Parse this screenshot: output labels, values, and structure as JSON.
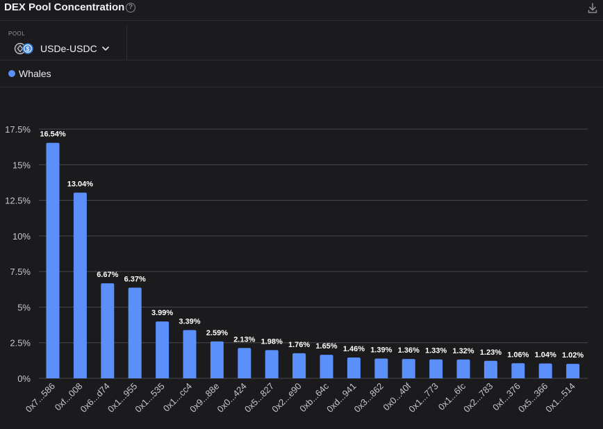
{
  "header": {
    "title": "DEX Pool Concentration",
    "help_glyph": "?"
  },
  "filters": {
    "pool_label": "POOL",
    "pool_value": "USDe-USDC"
  },
  "colors": {
    "bar": "#5b8ff9",
    "grid": "#4a4a4e",
    "background": "#1b1b1d"
  },
  "chart_data": {
    "type": "bar",
    "categories": [
      "0x7...586",
      "0xf...008",
      "0x6...d74",
      "0x1...955",
      "0x1...535",
      "0x1...cc4",
      "0x9...88e",
      "0x0...424",
      "0x5...827",
      "0x2...e90",
      "0xb...64c",
      "0xd...941",
      "0x3...862",
      "0x0...40f",
      "0x1...773",
      "0x1...6fc",
      "0x2...783",
      "0xf...376",
      "0x5...366",
      "0x1...514"
    ],
    "series": [
      {
        "name": "Whales",
        "values": [
          16.54,
          13.04,
          6.67,
          6.37,
          3.99,
          3.39,
          2.59,
          2.13,
          1.98,
          1.76,
          1.65,
          1.46,
          1.39,
          1.36,
          1.33,
          1.32,
          1.23,
          1.06,
          1.04,
          1.02
        ],
        "labels": [
          "16.54%",
          "13.04%",
          "6.67%",
          "6.37%",
          "3.99%",
          "3.39%",
          "2.59%",
          "2.13%",
          "1.98%",
          "1.76%",
          "1.65%",
          "1.46%",
          "1.39%",
          "1.36%",
          "1.33%",
          "1.32%",
          "1.23%",
          "1.06%",
          "1.04%",
          "1.02%"
        ]
      }
    ],
    "y_ticks": [
      0,
      2.5,
      5,
      7.5,
      10,
      12.5,
      15,
      17.5
    ],
    "y_tick_labels": [
      "0%",
      "2.5%",
      "5%",
      "7.5%",
      "10%",
      "12.5%",
      "15%",
      "17.5%"
    ],
    "ylim": [
      0,
      17.5
    ],
    "grid": true,
    "legend_position": "top-left",
    "title": "",
    "xlabel": "",
    "ylabel": ""
  }
}
